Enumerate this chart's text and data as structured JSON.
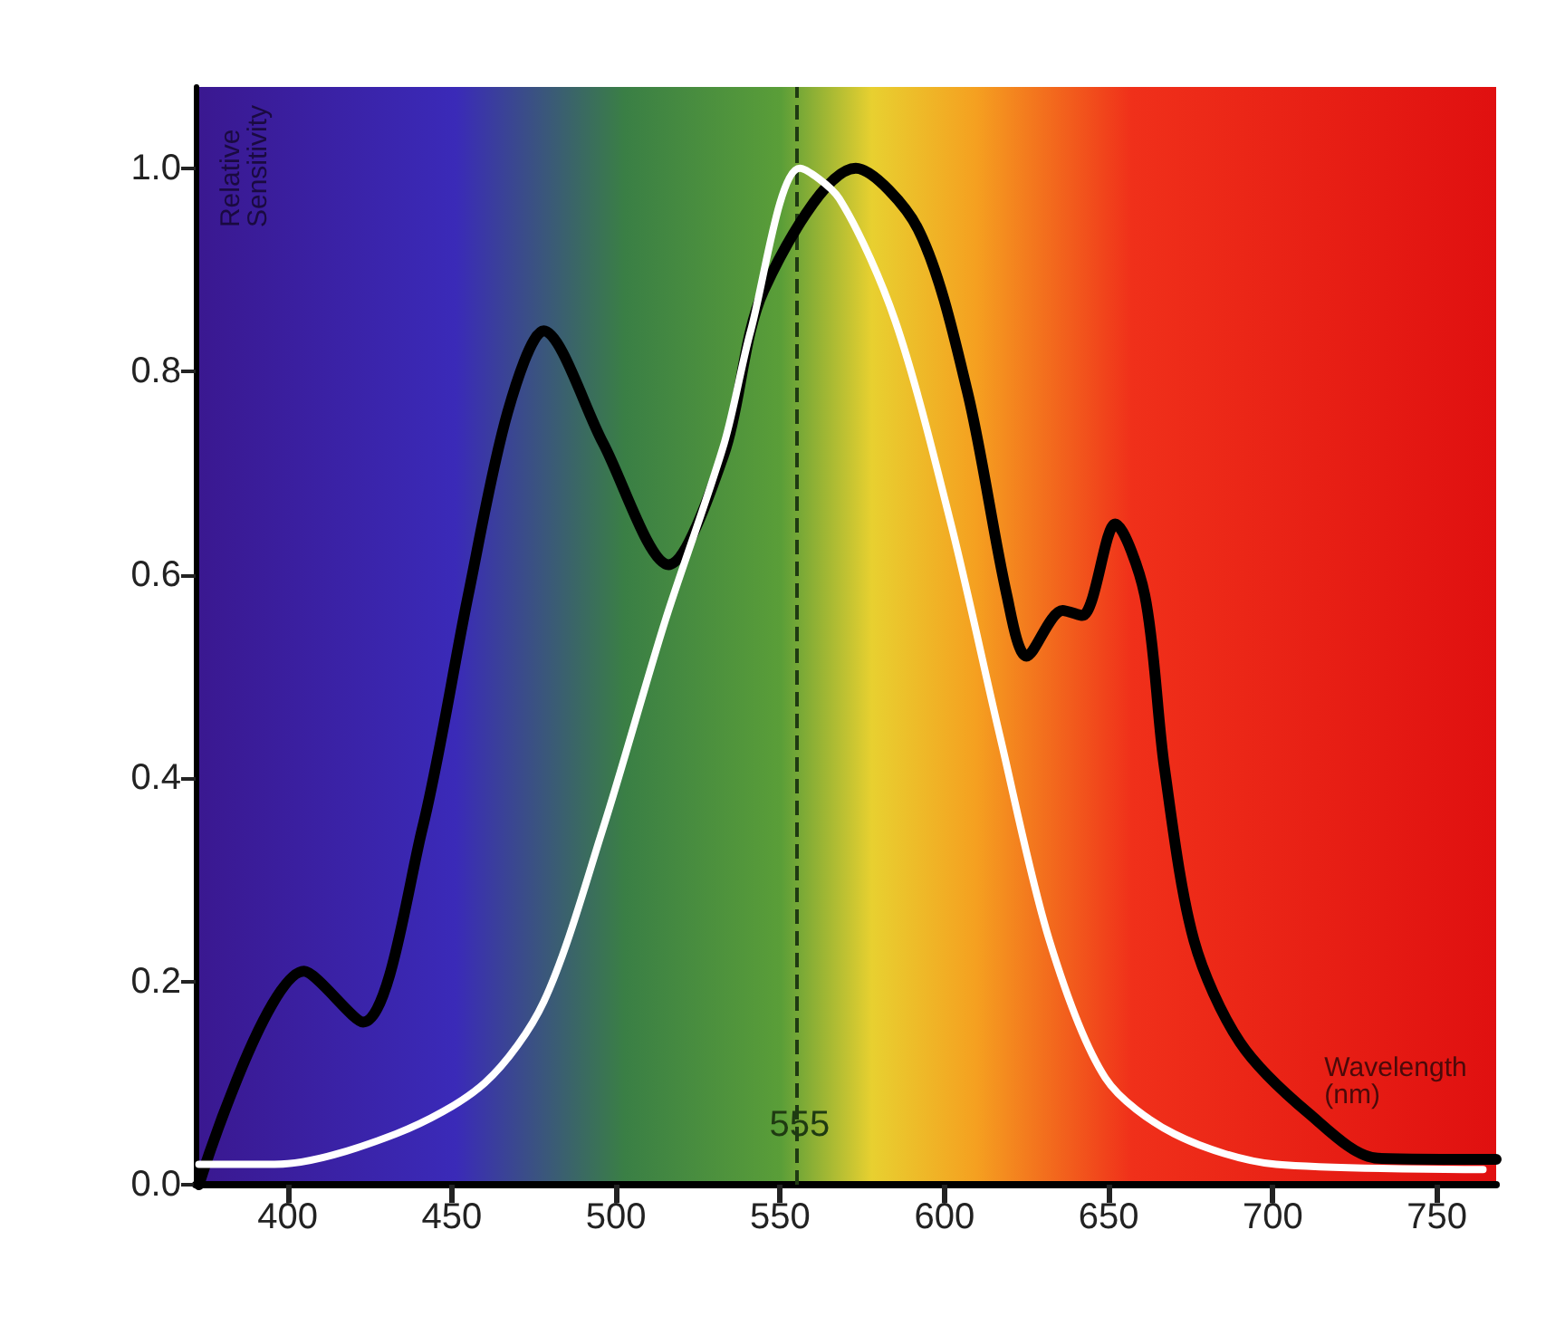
{
  "chart_data": {
    "type": "line",
    "xlabel": "Wavelength (nm)",
    "ylabel": "Relative Sensitivity",
    "xlim": [
      372,
      768
    ],
    "ylim": [
      0,
      1.08
    ],
    "xticks": [
      400,
      450,
      500,
      550,
      600,
      650,
      700,
      750
    ],
    "yticks": [
      {
        "value": 0,
        "label": "0.0"
      },
      {
        "value": 0.2,
        "label": "0.2"
      },
      {
        "value": 0.4,
        "label": "0.4"
      },
      {
        "value": 0.6,
        "label": "0.6"
      },
      {
        "value": 0.8,
        "label": "0.8"
      },
      {
        "value": 1,
        "label": "1.0"
      }
    ],
    "grid": false,
    "marker": "none",
    "line_style": "solid",
    "series": [
      {
        "color": "#ffffff",
        "x": [
          373,
          396,
          433,
          460,
          478,
          496,
          515,
          533,
          541,
          556,
          568,
          585,
          602,
          617,
          632,
          649,
          670,
          701,
          764
        ],
        "values": [
          0.02,
          0.02,
          0.05,
          0.1,
          0.18,
          0.35,
          0.555,
          0.73,
          0.84,
          1.0,
          0.97,
          0.85,
          0.65,
          0.44,
          0.24,
          0.105,
          0.05,
          0.02,
          0.015
        ]
      },
      {
        "color": "#000000",
        "x": [
          373,
          405,
          423,
          441,
          455,
          467,
          478,
          496,
          516,
          533,
          545,
          573,
          592,
          607,
          619,
          625,
          636,
          642,
          652,
          661,
          667,
          676,
          690,
          711,
          732,
          768
        ],
        "values": [
          0.0,
          0.21,
          0.16,
          0.35,
          0.58,
          0.76,
          0.84,
          0.73,
          0.61,
          0.72,
          0.88,
          1.0,
          0.94,
          0.78,
          0.58,
          0.52,
          0.565,
          0.56,
          0.65,
          0.58,
          0.41,
          0.24,
          0.14,
          0.07,
          0.026,
          0.025
        ]
      }
    ],
    "ref_lines": [
      {
        "axis": "x",
        "value": 555,
        "label": "555",
        "color": "#1f3a12",
        "line_style": "dashed"
      }
    ]
  }
}
